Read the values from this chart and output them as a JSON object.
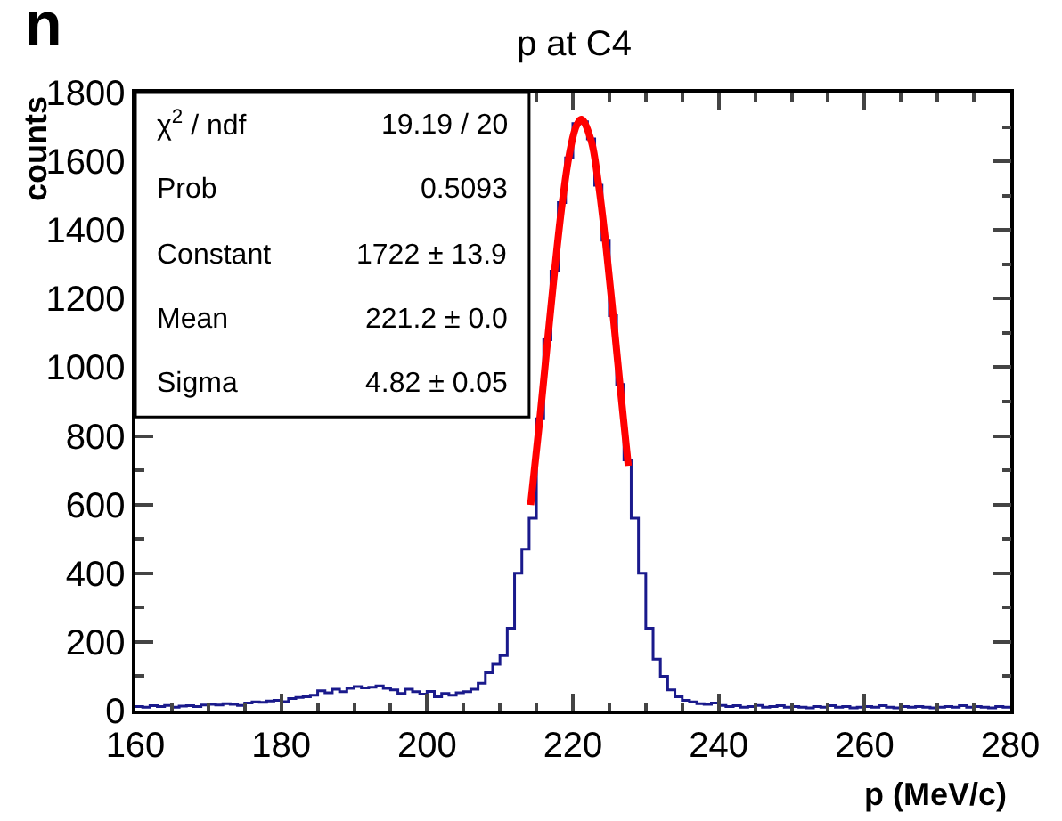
{
  "chart_data": {
    "type": "histogram",
    "title": "p at C4",
    "xlabel": "p (MeV/c)",
    "ylabel": "counts",
    "bins": [
      160,
      161,
      162,
      163,
      164,
      165,
      166,
      167,
      168,
      169,
      170,
      171,
      172,
      173,
      174,
      175,
      176,
      177,
      178,
      179,
      180,
      181,
      182,
      183,
      184,
      185,
      186,
      187,
      188,
      189,
      190,
      191,
      192,
      193,
      194,
      195,
      196,
      197,
      198,
      199,
      200,
      201,
      202,
      203,
      204,
      205,
      206,
      207,
      208,
      209,
      210,
      211,
      212,
      213,
      214,
      215,
      216,
      217,
      218,
      219,
      220,
      221,
      222,
      223,
      224,
      225,
      226,
      227,
      228,
      229,
      230,
      231,
      232,
      233,
      234,
      235,
      236,
      237,
      238,
      239,
      240,
      241,
      242,
      243,
      244,
      245,
      246,
      247,
      248,
      249,
      250,
      251,
      252,
      253,
      254,
      255,
      256,
      257,
      258,
      259,
      260,
      261,
      262,
      263,
      264,
      265,
      266,
      267,
      268,
      269,
      270,
      271,
      272,
      273,
      274,
      275,
      276,
      277,
      278,
      279,
      280
    ],
    "values": [
      12,
      10,
      14,
      12,
      15,
      10,
      13,
      14,
      12,
      16,
      18,
      16,
      20,
      18,
      15,
      22,
      25,
      24,
      28,
      30,
      26,
      35,
      38,
      40,
      45,
      58,
      52,
      62,
      55,
      65,
      70,
      66,
      68,
      72,
      65,
      60,
      50,
      62,
      55,
      48,
      56,
      40,
      50,
      45,
      52,
      55,
      62,
      80,
      110,
      135,
      160,
      240,
      400,
      470,
      560,
      850,
      1080,
      1280,
      1480,
      1610,
      1710,
      1715,
      1665,
      1530,
      1370,
      1150,
      950,
      730,
      560,
      400,
      240,
      150,
      100,
      60,
      40,
      30,
      25,
      20,
      18,
      22,
      15,
      12,
      14,
      10,
      12,
      15,
      10,
      12,
      14,
      10,
      12,
      10,
      8,
      12,
      10,
      14,
      10,
      12,
      8,
      10,
      12,
      10,
      14,
      10,
      8,
      12,
      10,
      12,
      10,
      8,
      10,
      12,
      10,
      14,
      10,
      12,
      10,
      8,
      12,
      10
    ],
    "color": "#1a1a8c",
    "series": [
      {
        "type": "line",
        "color": "#ff0000",
        "x": [
          214.2,
          215.5,
          216.5,
          217.5,
          218.5,
          219.5,
          220.5,
          221.2,
          222.5,
          223.5,
          224.5,
          225.5,
          226.5,
          227.6
        ],
        "values": [
          599,
          856,
          1071,
          1282,
          1472,
          1618,
          1704,
          1722,
          1661,
          1536,
          1362,
          1157,
          940,
          713
        ]
      }
    ],
    "xlim": [
      160,
      280
    ],
    "xticks": [
      160,
      180,
      200,
      220,
      240,
      260,
      280
    ],
    "ylim": [
      0,
      1800
    ],
    "yticks": [
      0,
      200,
      400,
      600,
      800,
      1000,
      1200,
      1400,
      1600,
      1800
    ],
    "annotations": [
      "n",
      "χ$^{2}$ / ndf",
      "19.19 / 20",
      "Prob",
      "0.5093",
      "Constant",
      "1722 ± 13.9",
      "Mean",
      "221.2 ± 0.0",
      "Sigma",
      "4.82 ± 0.05"
    ]
  }
}
